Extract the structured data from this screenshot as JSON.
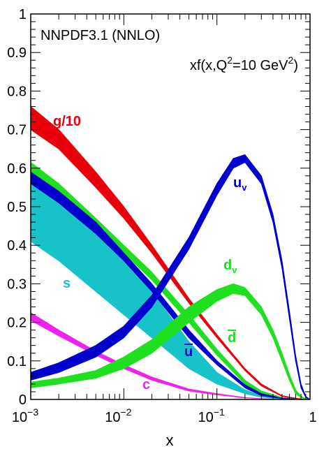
{
  "chart_data": {
    "type": "area",
    "title": "",
    "annotations": {
      "set_label": "NNPDF3.1 (NNLO)",
      "quantity_label": "xf(x,Q²=10 GeV²)"
    },
    "xlabel": "x",
    "ylabel": "",
    "xscale": "log",
    "xlim": [
      0.001,
      1
    ],
    "ylim": [
      0,
      1
    ],
    "grid": false,
    "legend": "none",
    "x_ticks": [
      {
        "value": 0.001,
        "base": "10",
        "exp": "−3"
      },
      {
        "value": 0.01,
        "base": "10",
        "exp": "−2"
      },
      {
        "value": 0.1,
        "base": "10",
        "exp": "−1"
      },
      {
        "value": 1,
        "base": "1",
        "exp": ""
      }
    ],
    "y_ticks": [
      {
        "value": 0,
        "label": "0"
      },
      {
        "value": 0.1,
        "label": "0.1"
      },
      {
        "value": 0.2,
        "label": "0.2"
      },
      {
        "value": 0.3,
        "label": "0.3"
      },
      {
        "value": 0.4,
        "label": "0.4"
      },
      {
        "value": 0.5,
        "label": "0.5"
      },
      {
        "value": 0.6,
        "label": "0.6"
      },
      {
        "value": 0.7,
        "label": "0.7"
      },
      {
        "value": 0.8,
        "label": "0.8"
      },
      {
        "value": 0.9,
        "label": "0.9"
      },
      {
        "value": 1,
        "label": "1"
      }
    ],
    "series": [
      {
        "key": "gluon",
        "label_main": "g/10",
        "label_sub": "",
        "label_over": false,
        "color": "#e8000b",
        "x": [
          0.001,
          0.002,
          0.005,
          0.01,
          0.02,
          0.05,
          0.1,
          0.2,
          0.3,
          0.5,
          0.7,
          0.9,
          1.0
        ],
        "lower": [
          0.7,
          0.65,
          0.55,
          0.47,
          0.38,
          0.25,
          0.16,
          0.075,
          0.035,
          0.008,
          0.002,
          0.0,
          0.0
        ],
        "upper": [
          0.76,
          0.7,
          0.59,
          0.5,
          0.4,
          0.262,
          0.168,
          0.08,
          0.04,
          0.01,
          0.003,
          0.0,
          0.0
        ]
      },
      {
        "key": "strange",
        "label_main": "s",
        "label_sub": "",
        "label_over": false,
        "color": "#17c3c8",
        "x": [
          0.001,
          0.002,
          0.005,
          0.01,
          0.02,
          0.05,
          0.1,
          0.2,
          0.3,
          0.5,
          0.7,
          1.0
        ],
        "lower": [
          0.41,
          0.36,
          0.28,
          0.22,
          0.16,
          0.08,
          0.04,
          0.015,
          0.006,
          0.001,
          0.0,
          0.0
        ],
        "upper": [
          0.56,
          0.51,
          0.44,
          0.37,
          0.28,
          0.15,
          0.07,
          0.025,
          0.01,
          0.002,
          0.0,
          0.0
        ]
      },
      {
        "key": "dbar",
        "label_main": "d",
        "label_sub": "",
        "label_over": true,
        "color": "#1ee01e",
        "x": [
          0.001,
          0.002,
          0.005,
          0.01,
          0.02,
          0.05,
          0.1,
          0.2,
          0.3,
          0.5,
          0.7,
          1.0
        ],
        "lower": [
          0.58,
          0.52,
          0.44,
          0.38,
          0.31,
          0.2,
          0.115,
          0.04,
          0.015,
          0.003,
          0.0,
          0.0
        ],
        "upper": [
          0.615,
          0.56,
          0.47,
          0.4,
          0.33,
          0.22,
          0.13,
          0.05,
          0.022,
          0.005,
          0.001,
          0.0
        ]
      },
      {
        "key": "ubar",
        "label_main": "u",
        "label_sub": "",
        "label_over": true,
        "color": "#0000cc",
        "x": [
          0.001,
          0.002,
          0.005,
          0.01,
          0.02,
          0.05,
          0.1,
          0.2,
          0.3,
          0.5,
          0.7,
          1.0
        ],
        "lower": [
          0.56,
          0.51,
          0.43,
          0.36,
          0.28,
          0.16,
          0.09,
          0.03,
          0.01,
          0.002,
          0.0,
          0.0
        ],
        "upper": [
          0.59,
          0.54,
          0.46,
          0.38,
          0.3,
          0.18,
          0.1,
          0.038,
          0.015,
          0.003,
          0.001,
          0.0
        ]
      },
      {
        "key": "charm",
        "label_main": "c",
        "label_sub": "",
        "label_over": false,
        "color": "#ee22ee",
        "x": [
          0.001,
          0.002,
          0.005,
          0.01,
          0.02,
          0.05,
          0.1,
          0.2,
          0.3,
          0.5,
          1.0
        ],
        "lower": [
          0.205,
          0.165,
          0.115,
          0.08,
          0.05,
          0.022,
          0.012,
          0.004,
          0.002,
          0.0,
          0.0
        ],
        "upper": [
          0.225,
          0.18,
          0.125,
          0.09,
          0.058,
          0.027,
          0.015,
          0.005,
          0.002,
          0.0,
          0.0
        ]
      },
      {
        "key": "dvalence",
        "label_main": "d",
        "label_sub": "v",
        "label_over": false,
        "color": "#1ee01e",
        "x": [
          0.001,
          0.002,
          0.005,
          0.01,
          0.02,
          0.05,
          0.1,
          0.15,
          0.2,
          0.3,
          0.4,
          0.5,
          0.6,
          0.7,
          0.8,
          0.9,
          1.0
        ],
        "lower": [
          0.03,
          0.04,
          0.055,
          0.08,
          0.12,
          0.2,
          0.255,
          0.275,
          0.27,
          0.22,
          0.16,
          0.1,
          0.05,
          0.015,
          0.005,
          0.001,
          0.0
        ],
        "upper": [
          0.045,
          0.055,
          0.075,
          0.11,
          0.155,
          0.24,
          0.285,
          0.3,
          0.29,
          0.24,
          0.18,
          0.12,
          0.065,
          0.025,
          0.008,
          0.002,
          0.0
        ]
      },
      {
        "key": "uvalence",
        "label_main": "u",
        "label_sub": "v",
        "label_over": false,
        "color": "#0000cc",
        "x": [
          0.001,
          0.002,
          0.005,
          0.01,
          0.02,
          0.05,
          0.1,
          0.15,
          0.2,
          0.3,
          0.4,
          0.5,
          0.6,
          0.7,
          0.8,
          0.9,
          1.0
        ],
        "lower": [
          0.05,
          0.07,
          0.11,
          0.16,
          0.24,
          0.39,
          0.53,
          0.6,
          0.615,
          0.56,
          0.46,
          0.34,
          0.21,
          0.1,
          0.03,
          0.005,
          0.0
        ],
        "upper": [
          0.07,
          0.095,
          0.14,
          0.19,
          0.27,
          0.42,
          0.56,
          0.625,
          0.635,
          0.58,
          0.48,
          0.36,
          0.23,
          0.115,
          0.04,
          0.008,
          0.0
        ]
      }
    ]
  }
}
